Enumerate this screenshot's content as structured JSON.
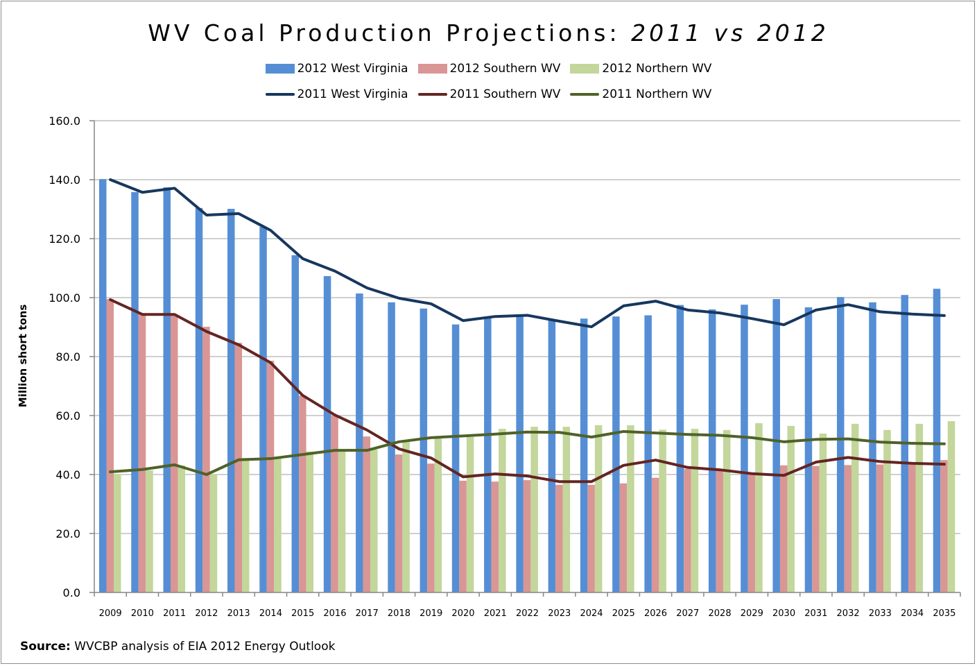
{
  "chart_data": {
    "type": "bar",
    "title_main": "WV Coal Production Projections: ",
    "title_italic": "2011 vs 2012",
    "xlabel": "",
    "ylabel": "Million short tons",
    "ylim": [
      0,
      160
    ],
    "ytick_step": 20,
    "yticks": [
      "0.0",
      "20.0",
      "40.0",
      "60.0",
      "80.0",
      "100.0",
      "120.0",
      "140.0",
      "160.0"
    ],
    "grid": true,
    "legend_position": "top",
    "categories": [
      "2009",
      "2010",
      "2011",
      "2012",
      "2013",
      "2014",
      "2015",
      "2016",
      "2017",
      "2018",
      "2019",
      "2020",
      "2021",
      "2022",
      "2023",
      "2024",
      "2025",
      "2026",
      "2027",
      "2028",
      "2029",
      "2030",
      "2031",
      "2032",
      "2033",
      "2034",
      "2035"
    ],
    "bar_series": [
      {
        "name": "2012 West Virginia",
        "color": "#558ed5",
        "values": [
          140.2,
          135.8,
          137.4,
          130.4,
          130.1,
          124.0,
          114.4,
          107.3,
          101.4,
          98.4,
          96.3,
          90.9,
          93.5,
          93.5,
          92.5,
          92.9,
          93.6,
          94.0,
          97.5,
          96.0,
          97.6,
          99.5,
          96.7,
          100.2,
          98.4,
          100.9,
          103.0
        ]
      },
      {
        "name": "2012 Southern WV",
        "color": "#d99694",
        "values": [
          99.5,
          94.4,
          94.4,
          90.1,
          84.7,
          78.6,
          66.8,
          60.0,
          52.9,
          46.8,
          43.7,
          37.9,
          37.6,
          38.1,
          36.5,
          36.5,
          37.0,
          38.9,
          41.9,
          41.2,
          40.1,
          43.1,
          42.9,
          43.2,
          43.4,
          43.4,
          44.9
        ]
      },
      {
        "name": "2012 Northern WV",
        "color": "#c3d69b",
        "values": [
          40.2,
          41.4,
          43.1,
          40.2,
          45.6,
          45.4,
          47.8,
          48.0,
          48.5,
          51.1,
          52.2,
          52.7,
          55.5,
          56.2,
          56.2,
          56.7,
          56.7,
          55.2,
          55.5,
          55.1,
          57.4,
          56.5,
          53.9,
          57.2,
          55.1,
          57.2,
          58.1
        ]
      }
    ],
    "line_series": [
      {
        "name": "2011 West Virginia",
        "color": "#17375e",
        "values": [
          140.0,
          135.7,
          137.1,
          128.0,
          128.5,
          122.8,
          113.2,
          109.0,
          103.3,
          99.8,
          97.9,
          92.2,
          93.6,
          94.0,
          92.0,
          90.1,
          97.2,
          98.8,
          95.8,
          94.8,
          92.9,
          90.8,
          95.8,
          97.6,
          95.2,
          94.4,
          93.9
        ]
      },
      {
        "name": "2011 Southern WV",
        "color": "#632523",
        "values": [
          99.3,
          94.3,
          94.3,
          88.5,
          84.0,
          77.9,
          66.8,
          60.2,
          55.1,
          48.7,
          45.6,
          39.2,
          40.2,
          39.5,
          37.6,
          37.6,
          43.1,
          44.9,
          42.4,
          41.6,
          40.3,
          39.7,
          44.2,
          45.8,
          44.4,
          43.8,
          43.5
        ]
      },
      {
        "name": "2011 Northern WV",
        "color": "#4f6228",
        "values": [
          40.9,
          41.7,
          43.3,
          40.0,
          45.0,
          45.4,
          46.8,
          48.2,
          48.2,
          51.1,
          52.5,
          53.1,
          53.7,
          54.4,
          54.3,
          52.7,
          54.6,
          54.1,
          53.6,
          53.3,
          52.5,
          51.1,
          51.9,
          52.1,
          51.0,
          50.6,
          50.4
        ]
      }
    ],
    "source_label": "Source:",
    "source_text": " WVCBP analysis of EIA 2012 Energy Outlook"
  }
}
